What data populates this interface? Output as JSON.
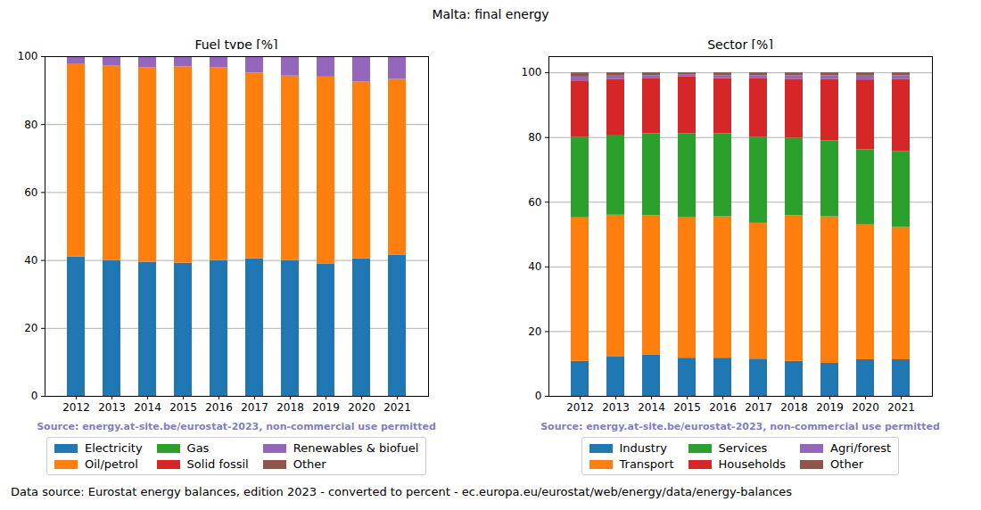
{
  "title": "Malta: final energy",
  "caption": "Data source: Eurostat energy balances, edition 2023 - converted to percent - ec.europa.eu/eurostat/web/energy/data/energy-balances",
  "chart_data": [
    {
      "type": "bar",
      "title": "Fuel type [%]",
      "annotation": "Source: energy.at-site.be/eurostat-2023, non-commercial use permitted",
      "categories": [
        "2012",
        "2013",
        "2014",
        "2015",
        "2016",
        "2017",
        "2018",
        "2019",
        "2020",
        "2021"
      ],
      "series": [
        {
          "name": "Electricity",
          "color": "#1f77b4",
          "values": [
            41,
            40,
            39.5,
            39.2,
            40,
            40.5,
            40,
            39,
            40.5,
            41.5
          ]
        },
        {
          "name": "Oil/petrol",
          "color": "#ff7f0e",
          "values": [
            56.7,
            57.2,
            57.3,
            57.8,
            56.8,
            54.7,
            54.3,
            55,
            52,
            51.8
          ]
        },
        {
          "name": "Gas",
          "color": "#2ca02c",
          "values": [
            0,
            0,
            0,
            0,
            0,
            0,
            0,
            0,
            0,
            0
          ]
        },
        {
          "name": "Solid fossil",
          "color": "#d62728",
          "values": [
            0,
            0,
            0,
            0,
            0,
            0,
            0,
            0,
            0,
            0
          ]
        },
        {
          "name": "Renewables & biofuel",
          "color": "#9467bd",
          "values": [
            2.3,
            2.8,
            3.2,
            3,
            3.2,
            4.8,
            5.7,
            6,
            7.5,
            6.7
          ]
        },
        {
          "name": "Other",
          "color": "#8c564b",
          "values": [
            0,
            0,
            0,
            0,
            0,
            0,
            0,
            0,
            0,
            0
          ]
        }
      ],
      "ylim": [
        0,
        100
      ],
      "yticks": [
        0,
        20,
        40,
        60,
        80,
        100
      ],
      "grid": true,
      "stacked": true,
      "legend": "bottom"
    },
    {
      "type": "bar",
      "title": "Sector [%]",
      "annotation": "Source: energy.at-site.be/eurostat-2023, non-commercial use permitted",
      "categories": [
        "2012",
        "2013",
        "2014",
        "2015",
        "2016",
        "2017",
        "2018",
        "2019",
        "2020",
        "2021"
      ],
      "series": [
        {
          "name": "Industry",
          "color": "#1f77b4",
          "values": [
            10.8,
            12.3,
            12.7,
            11.8,
            11.8,
            11.5,
            10.8,
            10.2,
            11.3,
            11.3
          ]
        },
        {
          "name": "Transport",
          "color": "#ff7f0e",
          "values": [
            44.4,
            43.7,
            43.1,
            43.4,
            43.7,
            42,
            45,
            45.3,
            41.7,
            40.9
          ]
        },
        {
          "name": "Services",
          "color": "#2ca02c",
          "values": [
            24.8,
            24.5,
            25.4,
            26,
            25.7,
            26.5,
            24,
            23.5,
            23.2,
            23.5
          ]
        },
        {
          "name": "Households",
          "color": "#d62728",
          "values": [
            17.5,
            17.5,
            17.1,
            17.5,
            17,
            18.3,
            18.2,
            19,
            21.6,
            22.3
          ]
        },
        {
          "name": "Agri/forest",
          "color": "#9467bd",
          "values": [
            1.2,
            1,
            0.8,
            0.6,
            0.9,
            0.8,
            1.1,
            1.1,
            1.2,
            1.1
          ]
        },
        {
          "name": "Other",
          "color": "#8c564b",
          "values": [
            1.3,
            1,
            0.9,
            0.7,
            0.9,
            0.9,
            0.9,
            0.9,
            1,
            0.9
          ]
        }
      ],
      "ylim": [
        0,
        105
      ],
      "yticks": [
        0,
        20,
        40,
        60,
        80,
        100
      ],
      "grid": true,
      "stacked": true,
      "legend": "bottom"
    }
  ]
}
